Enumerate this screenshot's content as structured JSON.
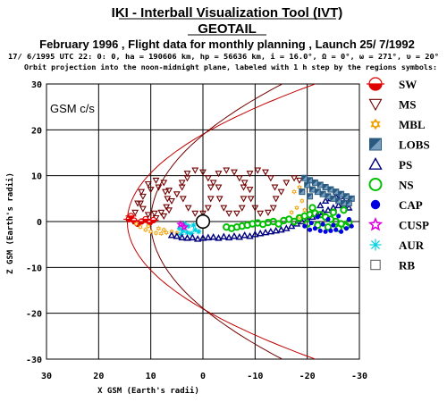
{
  "header": {
    "title": "IKI - Interball Visualization Tool (IVT)",
    "satellite": "GEOTAIL",
    "subtitle": "February 1996 ,  Flight data for monthly planning ,   Launch 25/ 7/1992",
    "info_line_1": "17/ 6/1995 UTC 22: 0: 0, ha = 190606 km, hp =  56636 km, i = 16.0°, Ω =   0°, ω = 271°, υ =  20°",
    "info_line_2": "Orbit projection into the noon-midnight plane, labeled with 1 h step by the regions symbols:"
  },
  "chart_data": {
    "type": "scatter",
    "title": "",
    "xlabel": "X GSM (Earth's radii)",
    "ylabel": "Z GSM (Earth's radii)",
    "coordinate_label": "GSM c/s",
    "xlim": [
      30,
      -30
    ],
    "ylim": [
      -30,
      30
    ],
    "x_ticks": [
      30,
      20,
      10,
      0,
      -10,
      -20,
      -30
    ],
    "y_ticks": [
      30,
      20,
      10,
      0,
      -10,
      -20,
      -30
    ],
    "grid": true,
    "legend_position": "right",
    "boundaries": {
      "bow_shock": {
        "nose": 14.5,
        "flare": 0.04,
        "color": "#c00000"
      },
      "magnetopause": {
        "nose": 10,
        "flare": 0.028,
        "color": "#700000"
      }
    },
    "earth": {
      "x": 0,
      "z": 0,
      "radius": 1
    },
    "regions": [
      {
        "key": "SW",
        "label": "SW",
        "symbol": "sw",
        "color": "#e00000"
      },
      {
        "key": "MS",
        "label": "MS",
        "symbol": "tri-down",
        "color": "#700000"
      },
      {
        "key": "MBL",
        "label": "MBL",
        "symbol": "star6",
        "color": "#f0a000"
      },
      {
        "key": "LOBS",
        "label": "LOBS",
        "symbol": "square-split",
        "color": "#2a5a80"
      },
      {
        "key": "PS",
        "label": "PS",
        "symbol": "tri-up",
        "color": "#000080"
      },
      {
        "key": "NS",
        "label": "NS",
        "symbol": "circle-open",
        "color": "#00c000"
      },
      {
        "key": "CAP",
        "label": "CAP",
        "symbol": "dot",
        "color": "#0000e0"
      },
      {
        "key": "CUSP",
        "label": "CUSP",
        "symbol": "star5",
        "color": "#e000e0"
      },
      {
        "key": "AUR",
        "label": "AUR",
        "symbol": "asterisk",
        "color": "#00d0e0"
      },
      {
        "key": "RB",
        "label": "RB",
        "symbol": "square-open",
        "color": "#555555"
      }
    ],
    "series": [
      {
        "region": "MS",
        "points": [
          [
            13,
            2
          ],
          [
            12.5,
            4
          ],
          [
            11.8,
            6.5
          ],
          [
            10.5,
            8.2
          ],
          [
            9,
            9
          ],
          [
            7.5,
            8.5
          ],
          [
            6.5,
            6.8
          ],
          [
            6,
            4.5
          ],
          [
            6.5,
            2.5
          ],
          [
            7.5,
            1.2
          ],
          [
            9,
            0.8
          ],
          [
            10.5,
            1.5
          ],
          [
            11.5,
            2.8
          ],
          [
            12,
            4
          ],
          [
            11.5,
            5.5
          ],
          [
            10,
            7
          ],
          [
            8.5,
            7.5
          ],
          [
            7.2,
            6.5
          ],
          [
            6.8,
            5
          ],
          [
            7,
            3.2
          ],
          [
            8,
            2
          ],
          [
            9.3,
            1.8
          ],
          [
            5,
            6
          ],
          [
            4,
            8.5
          ],
          [
            3,
            10.5
          ],
          [
            1.5,
            11.2
          ],
          [
            0,
            10.8
          ],
          [
            -1,
            9.5
          ],
          [
            -1.5,
            7.5
          ],
          [
            -1.5,
            5
          ],
          [
            -1,
            3
          ],
          [
            0,
            1.8
          ],
          [
            1.5,
            1.8
          ],
          [
            2.8,
            3
          ],
          [
            3.8,
            5
          ],
          [
            4,
            7.5
          ],
          [
            3,
            9.5
          ],
          [
            -2,
            8.5
          ],
          [
            -3,
            10.5
          ],
          [
            -4.5,
            11.2
          ],
          [
            -6,
            10.8
          ],
          [
            -7,
            9.5
          ],
          [
            -7.8,
            7.5
          ],
          [
            -7.8,
            5
          ],
          [
            -7.5,
            3
          ],
          [
            -6.5,
            1.8
          ],
          [
            -5,
            1.8
          ],
          [
            -4,
            3
          ],
          [
            -3.2,
            5
          ],
          [
            -3,
            7.5
          ],
          [
            -8,
            8.5
          ],
          [
            -9,
            10.5
          ],
          [
            -10.5,
            11.2
          ],
          [
            -12,
            10.8
          ],
          [
            -13,
            9.5
          ],
          [
            -13.8,
            7.5
          ],
          [
            -14,
            5
          ],
          [
            -13.5,
            3
          ],
          [
            -12.5,
            2
          ],
          [
            -11,
            1.8
          ],
          [
            -10,
            3
          ],
          [
            -9.2,
            5
          ],
          [
            -9,
            7
          ],
          [
            -15,
            6.5
          ],
          [
            -16,
            8.5
          ],
          [
            -17.5,
            9.5
          ],
          [
            -18.5,
            9
          ]
        ]
      },
      {
        "region": "SW",
        "points": [
          [
            14.2,
            0.5
          ],
          [
            13.8,
            1.2
          ],
          [
            13.2,
            0.2
          ],
          [
            12.5,
            -0.5
          ],
          [
            11.8,
            0
          ],
          [
            11,
            0.5
          ],
          [
            10.2,
            -0.2
          ],
          [
            9.5,
            0.3
          ]
        ]
      },
      {
        "region": "MBL",
        "points": [
          [
            12.8,
            -0.5
          ],
          [
            12,
            -1.2
          ],
          [
            11,
            -1.8
          ],
          [
            10,
            -2.2
          ],
          [
            9,
            -2.5
          ],
          [
            8,
            -2.6
          ],
          [
            7,
            -2.4
          ],
          [
            6,
            -2.2
          ],
          [
            5,
            -2.5
          ],
          [
            10.5,
            -1
          ],
          [
            8.5,
            -1.5
          ],
          [
            7.5,
            -1.8
          ],
          [
            -17.5,
            6.5
          ],
          [
            -18.5,
            7.5
          ],
          [
            -19,
            4.5
          ],
          [
            -18,
            3
          ],
          [
            -19.5,
            2.5
          ],
          [
            -17,
            2
          ],
          [
            -18.5,
            1
          ]
        ]
      },
      {
        "region": "AUR",
        "points": [
          [
            4.5,
            -1.5
          ],
          [
            3.8,
            -2
          ],
          [
            3,
            -2.4
          ],
          [
            2.2,
            -2.6
          ],
          [
            1.5,
            -1.8
          ],
          [
            2.8,
            -1
          ],
          [
            3.5,
            -0.5
          ],
          [
            1.8,
            -0.8
          ],
          [
            0.8,
            -2.2
          ],
          [
            4.2,
            -2.8
          ]
        ]
      },
      {
        "region": "CUSP",
        "points": [
          [
            4.3,
            -0.6
          ],
          [
            3.6,
            -1.2
          ]
        ]
      },
      {
        "region": "PS",
        "points": [
          [
            6,
            -3
          ],
          [
            5,
            -3.2
          ],
          [
            4,
            -3.5
          ],
          [
            3,
            -3.6
          ],
          [
            2,
            -3.5
          ],
          [
            1,
            -3.8
          ],
          [
            0,
            -3.6
          ],
          [
            -1,
            -3.5
          ],
          [
            -2,
            -3.4
          ],
          [
            -3,
            -3.6
          ],
          [
            -4,
            -3.3
          ],
          [
            -5,
            -3.5
          ],
          [
            -6,
            -3.2
          ],
          [
            -7,
            -3.4
          ],
          [
            -8,
            -3
          ],
          [
            -9,
            -3.2
          ],
          [
            -10,
            -2.8
          ],
          [
            -11,
            -2.6
          ],
          [
            -12,
            -2.4
          ],
          [
            -13,
            -2.2
          ],
          [
            -14,
            -2
          ],
          [
            -15,
            -1.8
          ],
          [
            -16,
            -1.5
          ],
          [
            -17,
            -1
          ],
          [
            -18,
            -0.5
          ],
          [
            -19,
            0
          ],
          [
            -20,
            0.5
          ],
          [
            -21,
            1
          ],
          [
            -22,
            1.5
          ],
          [
            -23,
            2
          ],
          [
            -24,
            2.5
          ],
          [
            -25,
            3
          ],
          [
            -26,
            3.5
          ],
          [
            -27,
            3.5
          ],
          [
            -28,
            3
          ],
          [
            -22.5,
            3.5
          ],
          [
            -23.5,
            4.5
          ],
          [
            -24.5,
            5
          ],
          [
            -25.5,
            5.5
          ],
          [
            -26.5,
            5.5
          ],
          [
            -27.5,
            5
          ]
        ]
      },
      {
        "region": "NS",
        "points": [
          [
            -4.5,
            -1.2
          ],
          [
            -5.5,
            -1.5
          ],
          [
            -6.5,
            -1.2
          ],
          [
            -7.5,
            -1
          ],
          [
            -8.5,
            -0.8
          ],
          [
            -9.5,
            -0.5
          ],
          [
            -10.5,
            -0.3
          ],
          [
            -11.5,
            -0.6
          ],
          [
            -12.5,
            -0.2
          ],
          [
            -13.5,
            0
          ],
          [
            -14.5,
            -0.5
          ],
          [
            -15.5,
            0.2
          ],
          [
            -16.5,
            0.5
          ],
          [
            -17.5,
            0
          ],
          [
            -18.5,
            0.8
          ],
          [
            -19.5,
            1.2
          ],
          [
            -20.5,
            1.5
          ],
          [
            -21.5,
            1.8
          ],
          [
            -22.5,
            1.5
          ],
          [
            -23.5,
            1
          ],
          [
            -24.5,
            0.5
          ],
          [
            -25.5,
            0
          ],
          [
            -26.5,
            -0.5
          ],
          [
            -27.5,
            -1
          ],
          [
            -20,
            -0.5
          ],
          [
            -22,
            -0.8
          ],
          [
            -24,
            -1.2
          ],
          [
            -26,
            -1.5
          ],
          [
            -28,
            -0.2
          ],
          [
            -21,
            3
          ],
          [
            -25,
            2
          ],
          [
            -27,
            2.5
          ]
        ]
      },
      {
        "region": "CAP",
        "points": [
          [
            -20.5,
            -1.8
          ],
          [
            -21.5,
            -1.5
          ],
          [
            -22.5,
            -2
          ],
          [
            -23.5,
            -2.2
          ],
          [
            -24.5,
            -2
          ],
          [
            -25.5,
            -1.8
          ],
          [
            -26.5,
            -2.2
          ],
          [
            -27.5,
            -1.5
          ],
          [
            -28.5,
            -1
          ],
          [
            -19.5,
            -1
          ],
          [
            -22,
            1
          ],
          [
            -24,
            0.5
          ],
          [
            -26,
            1.2
          ],
          [
            -28,
            0.5
          ],
          [
            -20.8,
            -0.3
          ],
          [
            -23,
            -0.6
          ],
          [
            -25,
            -0.8
          ]
        ]
      },
      {
        "region": "LOBS",
        "points": [
          [
            -19.5,
            9.5
          ],
          [
            -20.5,
            9
          ],
          [
            -21.5,
            8.5
          ],
          [
            -22.5,
            8
          ],
          [
            -23.5,
            7.5
          ],
          [
            -24.5,
            7
          ],
          [
            -25.5,
            6.5
          ],
          [
            -26.5,
            6
          ],
          [
            -27.5,
            5.5
          ],
          [
            -28.5,
            5
          ],
          [
            -20,
            8
          ],
          [
            -21,
            7
          ],
          [
            -22,
            6.5
          ],
          [
            -23,
            6
          ],
          [
            -24,
            5.5
          ],
          [
            -25,
            5
          ],
          [
            -26,
            4.5
          ],
          [
            -27,
            4
          ],
          [
            -28,
            4
          ],
          [
            -19,
            6.5
          ],
          [
            -20.5,
            5.5
          ]
        ]
      },
      {
        "region": "SW",
        "points": [
          [
            0,
            0
          ]
        ]
      }
    ]
  }
}
